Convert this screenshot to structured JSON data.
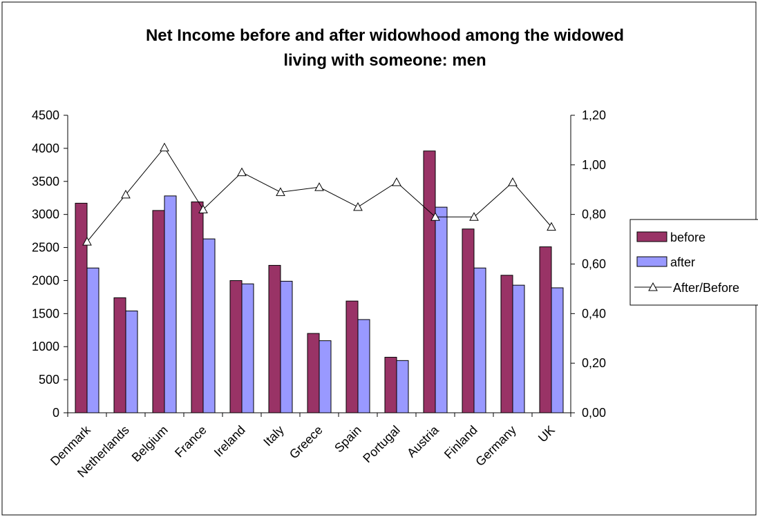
{
  "chart_data": {
    "type": "bar",
    "title_lines": [
      "Net Income before and after widowhood among the widowed",
      "living with someone: men"
    ],
    "categories": [
      "Denmark",
      "Netherlands",
      "Belgium",
      "France",
      "Ireland",
      "Italy",
      "Greece",
      "Spain",
      "Portugal",
      "Austria",
      "Finland",
      "Germany",
      "UK"
    ],
    "series": [
      {
        "name": "before",
        "kind": "bar",
        "axis": "left",
        "color": "#993366",
        "values": [
          3170,
          1740,
          3060,
          3190,
          2000,
          2230,
          1200,
          1690,
          840,
          3960,
          2780,
          2080,
          2510
        ]
      },
      {
        "name": "after",
        "kind": "bar",
        "axis": "left",
        "color": "#9999ff",
        "values": [
          2190,
          1540,
          3280,
          2630,
          1950,
          1990,
          1090,
          1410,
          790,
          3110,
          2190,
          1930,
          1890
        ]
      },
      {
        "name": "After/Before",
        "kind": "line",
        "axis": "right",
        "color": "#000000",
        "values": [
          0.69,
          0.88,
          1.07,
          0.82,
          0.97,
          0.89,
          0.91,
          0.83,
          0.93,
          0.79,
          0.79,
          0.93,
          0.75
        ]
      }
    ],
    "y_left": {
      "min": 0,
      "max": 4500,
      "ticks": [
        "0",
        "500",
        "1000",
        "1500",
        "2000",
        "2500",
        "3000",
        "3500",
        "4000",
        "4500"
      ]
    },
    "y_right": {
      "min": 0,
      "max": 1.2,
      "ticks": [
        "0,00",
        "0,20",
        "0,40",
        "0,60",
        "0,80",
        "1,00",
        "1,20"
      ]
    },
    "legend_position": "right",
    "grid": false
  }
}
